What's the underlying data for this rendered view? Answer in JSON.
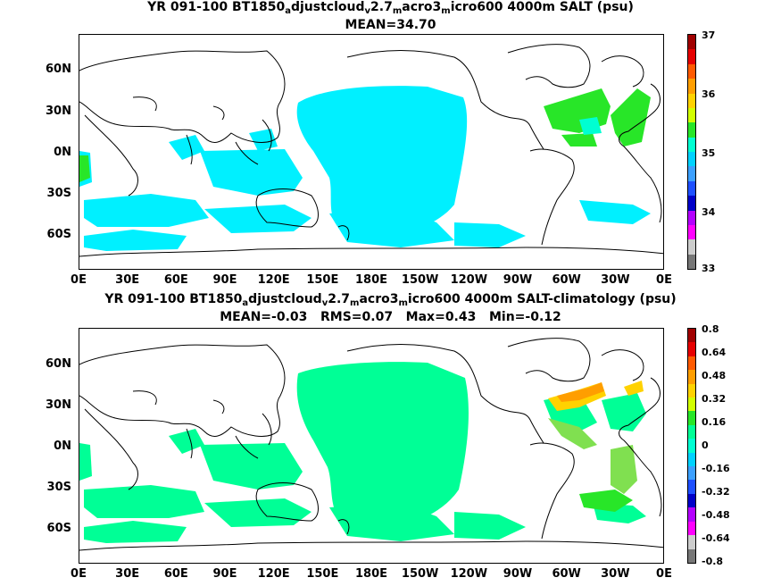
{
  "top": {
    "title_pre": "YR 091-100 BT1850",
    "title_s1": "a",
    "title_m1": "djustcloud",
    "title_s2": "v",
    "title_m2": "2.7",
    "title_s3": "m",
    "title_m3": "acro3",
    "title_s4": "m",
    "title_m4": "icro600 4000m SALT (psu)",
    "stats": "MEAN=34.70",
    "colorbar_labels": [
      "37",
      "36",
      "35",
      "34",
      "33"
    ],
    "colorbar_colors": [
      "#a00000",
      "#e60000",
      "#ff5a00",
      "#ff9e00",
      "#ffd200",
      "#d2ff00",
      "#28e628",
      "#00ffd2",
      "#00d2ff",
      "#3ca0ff",
      "#1e50ff",
      "#0000c8",
      "#b400ff",
      "#ff00ff",
      "#cccccc",
      "#777777"
    ]
  },
  "bottom": {
    "title_pre": "YR 091-100 BT1850",
    "title_s1": "a",
    "title_m1": "djustcloud",
    "title_s2": "v",
    "title_m2": "2.7",
    "title_s3": "m",
    "title_m3": "acro3",
    "title_s4": "m",
    "title_m4": "icro600 4000m SALT-climatology (psu)",
    "stats": "MEAN=-0.03   RMS=0.07   Max=0.43   Min=-0.12",
    "colorbar_labels": [
      "0.8",
      "0.64",
      "0.48",
      "0.32",
      "0.16",
      "0",
      "-0.16",
      "-0.32",
      "-0.48",
      "-0.64",
      "-0.8"
    ],
    "colorbar_colors": [
      "#a00000",
      "#e60000",
      "#ff5a00",
      "#ff9e00",
      "#ffd200",
      "#d2ff00",
      "#28e628",
      "#00ff96",
      "#00ffd2",
      "#00d2ff",
      "#3ca0ff",
      "#1e50ff",
      "#0000c8",
      "#b400ff",
      "#ff00ff",
      "#cccccc",
      "#777777"
    ]
  },
  "axes": {
    "lat_labels": [
      "60N",
      "30N",
      "0N",
      "30S",
      "60S"
    ],
    "lon_labels": [
      "0E",
      "30E",
      "60E",
      "90E",
      "120E",
      "150E",
      "180E",
      "150W",
      "120W",
      "90W",
      "60W",
      "30W",
      "0E"
    ]
  }
}
